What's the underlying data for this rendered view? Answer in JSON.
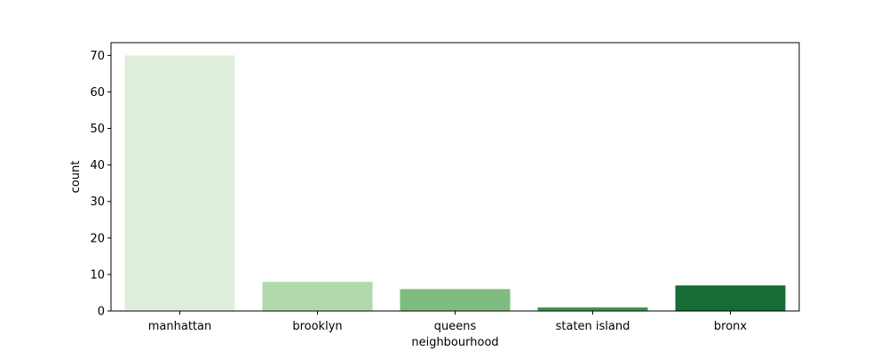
{
  "chart_data": {
    "type": "bar",
    "categories": [
      "manhattan",
      "brooklyn",
      "queens",
      "staten island",
      "bronx"
    ],
    "values": [
      70,
      8,
      6,
      1,
      7
    ],
    "colors": [
      "#dfefdb",
      "#b2d9ad",
      "#7ebc7f",
      "#3f9452",
      "#176b34"
    ],
    "xlabel": "neighbourhood",
    "ylabel": "count",
    "ylim": [
      0,
      73.5
    ],
    "yticks": [
      0,
      10,
      20,
      30,
      40,
      50,
      60,
      70
    ],
    "grid": false
  }
}
